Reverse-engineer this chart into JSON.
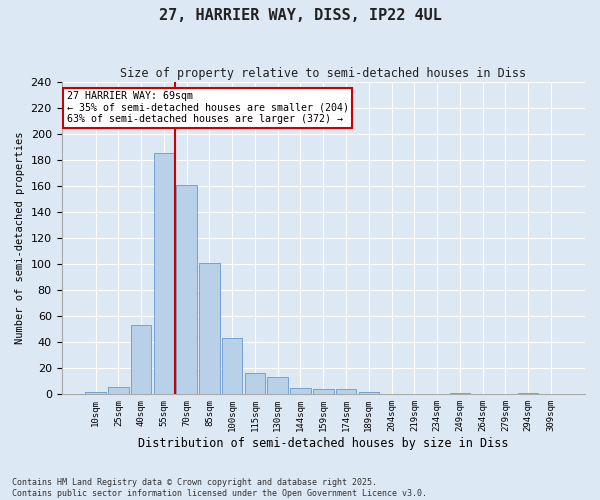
{
  "title1": "27, HARRIER WAY, DISS, IP22 4UL",
  "title2": "Size of property relative to semi-detached houses in Diss",
  "xlabel": "Distribution of semi-detached houses by size in Diss",
  "ylabel": "Number of semi-detached properties",
  "categories": [
    "10sqm",
    "25sqm",
    "40sqm",
    "55sqm",
    "70sqm",
    "85sqm",
    "100sqm",
    "115sqm",
    "130sqm",
    "144sqm",
    "159sqm",
    "174sqm",
    "189sqm",
    "204sqm",
    "219sqm",
    "234sqm",
    "249sqm",
    "264sqm",
    "279sqm",
    "294sqm",
    "309sqm"
  ],
  "values": [
    2,
    6,
    53,
    185,
    161,
    101,
    43,
    16,
    13,
    5,
    4,
    4,
    2,
    0,
    0,
    0,
    1,
    0,
    0,
    1,
    0
  ],
  "bar_color": "#b8d0e8",
  "bar_edge_color": "#6699cc",
  "bg_color": "#dde8f5",
  "grid_color": "#ffffff",
  "vline_color": "#cc0000",
  "annotation_title": "27 HARRIER WAY: 69sqm",
  "annotation_line2": "← 35% of semi-detached houses are smaller (204)",
  "annotation_line3": "63% of semi-detached houses are larger (372) →",
  "annotation_box_color": "#cc0000",
  "footer1": "Contains HM Land Registry data © Crown copyright and database right 2025.",
  "footer2": "Contains public sector information licensed under the Open Government Licence v3.0.",
  "ylim": [
    0,
    240
  ],
  "yticks": [
    0,
    20,
    40,
    60,
    80,
    100,
    120,
    140,
    160,
    180,
    200,
    220,
    240
  ]
}
